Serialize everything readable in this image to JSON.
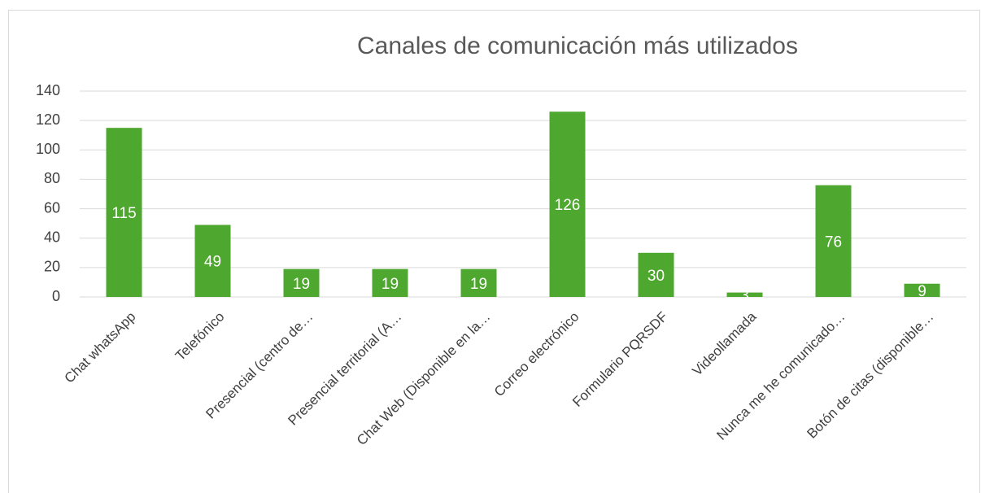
{
  "chart_data": {
    "type": "bar",
    "title": "Canales de comunicación más utilizados",
    "categories": [
      "Chat whatsApp",
      "Telefónico",
      "Presencial (centro de…",
      "Presencial territorial (A…",
      "Chat Web (Disponible en la…",
      "Correo electrónico",
      "Formulario PQRSDF",
      "Videollamada",
      "Nunca me he comunicado…",
      "Botón de citas (disponible…"
    ],
    "values": [
      115,
      49,
      19,
      19,
      19,
      126,
      30,
      3,
      76,
      9
    ],
    "color": "#4ea72e",
    "ylim": [
      0,
      140
    ],
    "yticks": [
      0,
      20,
      40,
      60,
      80,
      100,
      120,
      140
    ],
    "grid": true
  }
}
